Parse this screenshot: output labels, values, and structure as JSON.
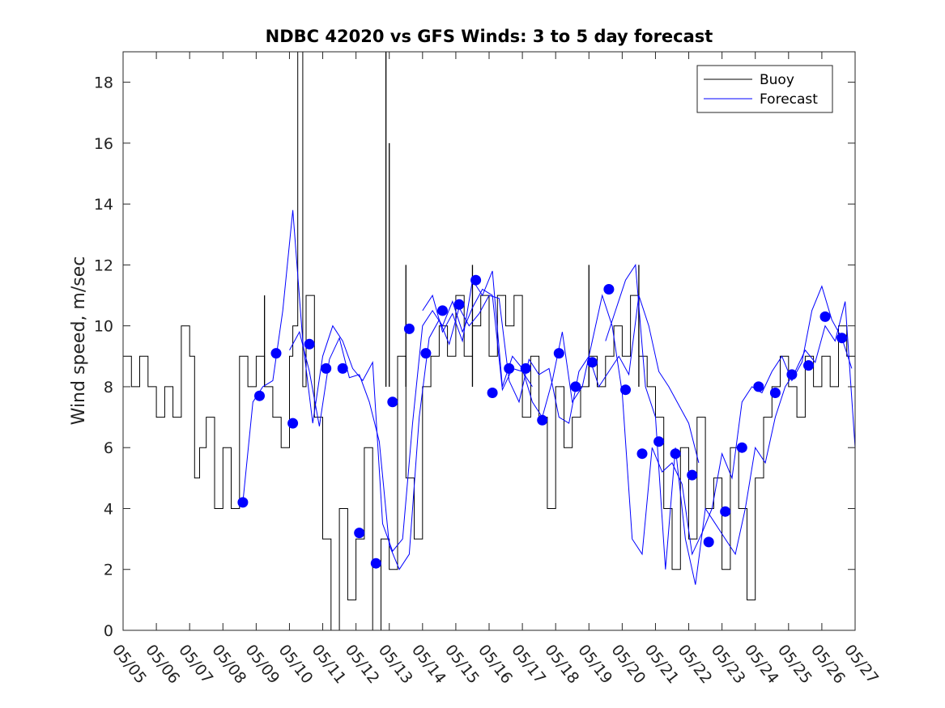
{
  "chart_data": {
    "type": "line",
    "title": "NDBC 42020 vs GFS Winds: 3 to 5 day forecast",
    "xlabel": "",
    "ylabel": "Wind speed, m/sec",
    "xlim": [
      0,
      22
    ],
    "ylim": [
      0,
      19
    ],
    "y_ticks": [
      0,
      2,
      4,
      6,
      8,
      10,
      12,
      14,
      16,
      18
    ],
    "x_tick_labels": [
      "05/05",
      "05/06",
      "05/07",
      "05/08",
      "05/09",
      "05/10",
      "05/11",
      "05/12",
      "05/13",
      "05/14",
      "05/15",
      "05/16",
      "05/17",
      "05/18",
      "05/19",
      "05/20",
      "05/21",
      "05/22",
      "05/23",
      "05/24",
      "05/25",
      "05/26",
      "05/27"
    ],
    "legend": {
      "position": "top-right",
      "entries": [
        "Buoy",
        "Forecast"
      ]
    },
    "colors": {
      "buoy": "#000000",
      "forecast": "#0000ff",
      "marker": "#0000ff"
    },
    "series": [
      {
        "name": "Buoy",
        "step": true,
        "x": [
          0.0,
          0.25,
          0.5,
          0.75,
          1.0,
          1.25,
          1.5,
          1.75,
          2.0,
          2.15,
          2.3,
          2.5,
          2.75,
          3.0,
          3.25,
          3.5,
          3.75,
          4.0,
          4.25,
          4.5,
          4.75,
          5.0,
          5.1,
          5.25,
          5.4,
          5.5,
          5.75,
          6.0,
          6.25,
          6.5,
          6.75,
          7.0,
          7.25,
          7.5,
          7.75,
          8.0,
          8.25,
          8.5,
          8.75,
          9.0,
          9.25,
          9.5,
          9.75,
          10.0,
          10.25,
          10.5,
          10.75,
          11.0,
          11.25,
          11.5,
          11.75,
          12.0,
          12.25,
          12.5,
          12.75,
          13.0,
          13.25,
          13.5,
          13.75,
          14.0,
          14.25,
          14.5,
          14.75,
          15.0,
          15.25,
          15.5,
          15.75,
          16.0,
          16.25,
          16.5,
          16.75,
          17.0,
          17.25,
          17.5,
          17.75,
          18.0,
          18.25,
          18.5,
          18.75,
          19.0,
          19.25,
          19.5,
          19.75,
          20.0,
          20.25,
          20.5,
          20.75,
          21.0,
          21.25,
          21.5,
          21.75,
          22.0
        ],
        "values": [
          9,
          8,
          9,
          8,
          7,
          8,
          7,
          10,
          9,
          5,
          6,
          7,
          4,
          6,
          4,
          9,
          8,
          9,
          8,
          7,
          6,
          9,
          10,
          19,
          8,
          11,
          7,
          3,
          0,
          4,
          1,
          3,
          6,
          0,
          3,
          2,
          9,
          5,
          3,
          8,
          9,
          10,
          9,
          11,
          9,
          10,
          11,
          9,
          11,
          10,
          11,
          7,
          9,
          7,
          4,
          8,
          6,
          7,
          8,
          9,
          8,
          9,
          10,
          9,
          11,
          9,
          8,
          7,
          4,
          2,
          6,
          3,
          7,
          4,
          5,
          2,
          6,
          4,
          1,
          5,
          7,
          8,
          9,
          8,
          7,
          9,
          8,
          9,
          8,
          10,
          9,
          8
        ],
        "peaks": [
          [
            4.25,
            11
          ],
          [
            7.9,
            19
          ],
          [
            8.0,
            16
          ],
          [
            8.5,
            12
          ],
          [
            10.5,
            12
          ],
          [
            14.0,
            12
          ],
          [
            15.5,
            12
          ]
        ]
      },
      {
        "name": "Forecast",
        "runs": [
          {
            "x": [
              3.6,
              3.9,
              4.2,
              4.5,
              4.8,
              5.1,
              5.4,
              5.7,
              6.0,
              6.3,
              6.6,
              6.9,
              7.2,
              7.5,
              7.8,
              8.1,
              8.4,
              8.7,
              9.0,
              9.3,
              9.6,
              9.9,
              10.2,
              10.5,
              10.8,
              11.1,
              11.4,
              11.7,
              12.0,
              12.3
            ],
            "values": [
              4.2,
              7.5,
              8.0,
              8.2,
              10.5,
              13.8,
              9.5,
              6.8,
              9.0,
              10.0,
              9.5,
              8.6,
              8.2,
              8.8,
              3.5,
              2.6,
              3.0,
              6.8,
              10.0,
              10.5,
              10.0,
              10.8,
              9.8,
              10.6,
              11.2,
              11.0,
              7.9,
              8.6,
              8.5,
              8.0
            ]
          },
          {
            "x": [
              5.0,
              5.3,
              5.6,
              5.9,
              6.2,
              6.5,
              6.8,
              7.1,
              7.4,
              7.7,
              8.0,
              8.3,
              8.6,
              8.9,
              9.2,
              9.5,
              9.8,
              10.1,
              10.4,
              10.7,
              11.0,
              11.3,
              11.6,
              11.9,
              12.2,
              12.5,
              12.8,
              13.1,
              13.4,
              13.7,
              14.0,
              14.3,
              14.6,
              14.9,
              15.2,
              15.5,
              15.8,
              16.1,
              16.4,
              16.7,
              17.0,
              17.3
            ],
            "values": [
              9.2,
              9.8,
              8.5,
              6.7,
              8.9,
              9.6,
              8.3,
              8.4,
              7.5,
              6.2,
              2.8,
              2.0,
              2.5,
              7.0,
              9.6,
              10.2,
              9.4,
              10.6,
              10.0,
              10.4,
              11.0,
              10.9,
              8.2,
              7.5,
              8.9,
              8.4,
              8.6,
              7.0,
              6.8,
              8.5,
              9.0,
              8.0,
              8.5,
              9.0,
              8.4,
              11.0,
              10.0,
              8.5,
              8.0,
              7.4,
              6.8,
              5.5
            ]
          },
          {
            "x": [
              9.0,
              9.3,
              9.6,
              9.9,
              10.2,
              10.5,
              10.8,
              11.1,
              11.4,
              11.7,
              12.0,
              12.3,
              12.6,
              12.9,
              13.2,
              13.5,
              13.8,
              14.1,
              14.4,
              14.7,
              15.0,
              15.3,
              15.6,
              15.9,
              16.2,
              16.5,
              16.8,
              17.1,
              17.4,
              17.7,
              18.0,
              18.3,
              18.6,
              18.9,
              19.2,
              19.5,
              19.8,
              20.1,
              20.4,
              20.7,
              21.0,
              21.3,
              21.6,
              21.9
            ],
            "values": [
              10.5,
              11.0,
              9.8,
              10.4,
              9.5,
              11.5,
              11.0,
              11.8,
              8.0,
              9.0,
              8.6,
              7.5,
              7.0,
              8.2,
              9.8,
              7.5,
              8.0,
              9.5,
              11.0,
              10.0,
              7.8,
              3.0,
              2.5,
              6.0,
              5.2,
              5.5,
              4.8,
              2.5,
              3.2,
              4.0,
              5.8,
              5.0,
              7.5,
              8.0,
              7.8,
              8.5,
              9.0,
              8.2,
              8.8,
              10.5,
              11.3,
              10.2,
              9.6,
              8.6
            ]
          },
          {
            "x": [
              14.5,
              14.8,
              15.1,
              15.4,
              15.7,
              16.0,
              16.3,
              16.6,
              16.9,
              17.2,
              17.5,
              17.8,
              18.1,
              18.4,
              18.7,
              19.0,
              19.3,
              19.6,
              19.9,
              20.2,
              20.5,
              20.8,
              21.1,
              21.4,
              21.7,
              22.0
            ],
            "values": [
              9.5,
              10.5,
              11.5,
              12.0,
              8.0,
              7.0,
              2.0,
              6.0,
              3.0,
              1.5,
              4.0,
              3.5,
              3.0,
              2.5,
              4.0,
              6.0,
              5.5,
              7.0,
              8.0,
              8.5,
              9.2,
              8.8,
              10.0,
              9.5,
              10.8,
              6.0
            ]
          }
        ]
      },
      {
        "name": "Forecast markers",
        "x": [
          3.6,
          4.1,
          4.6,
          5.1,
          5.6,
          6.1,
          6.6,
          7.1,
          7.6,
          8.1,
          8.6,
          9.1,
          9.6,
          10.1,
          10.6,
          11.1,
          11.6,
          12.1,
          12.6,
          13.1,
          13.6,
          14.1,
          14.6,
          15.1,
          15.6,
          16.1,
          16.6,
          17.1,
          17.6,
          18.1,
          18.6,
          19.1,
          19.6,
          20.1,
          20.6,
          21.1,
          21.6
        ],
        "values": [
          4.2,
          7.7,
          9.1,
          6.8,
          9.4,
          8.6,
          8.6,
          3.2,
          2.2,
          7.5,
          9.9,
          9.1,
          10.5,
          10.7,
          11.5,
          7.8,
          8.6,
          8.6,
          6.9,
          9.1,
          8.0,
          8.8,
          11.2,
          7.9,
          5.8,
          6.2,
          5.8,
          5.1,
          2.9,
          3.9,
          6.0,
          8.0,
          7.8,
          8.4,
          8.7,
          10.3,
          9.6
        ]
      }
    ]
  }
}
